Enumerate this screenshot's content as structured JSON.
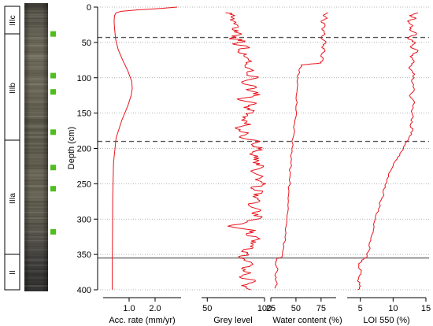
{
  "chart_data": {
    "type": "line",
    "y_axis": {
      "label": "Depth (cm)",
      "range": [
        0,
        400
      ],
      "inverted": true,
      "ticks": [
        "0",
        "50",
        "100",
        "150",
        "200",
        "250",
        "300",
        "350",
        "400"
      ],
      "gridlines": true,
      "grid_style": "dotted"
    },
    "units": {
      "labels": [
        "IIIc",
        "IIIb",
        "IIIa",
        "II"
      ],
      "boundaries_dashed": [
        43,
        190
      ],
      "boundary_solid": 355
    },
    "sample_markers": {
      "color": "#4fbe1e",
      "depths": [
        38,
        97,
        120,
        177,
        227,
        257,
        318
      ]
    },
    "series_color": "#e8141c",
    "panels": [
      {
        "id": "acc-rate",
        "xlabel": "Acc. rate (mm/yr)",
        "xlim": [
          0,
          3.0
        ],
        "ticks": [
          {
            "v": 1.0,
            "label": "1.0"
          },
          {
            "v": 2.0,
            "label": "2.0"
          }
        ],
        "depth": [
          0,
          2,
          4,
          6,
          8,
          12,
          20,
          30,
          45,
          60,
          75,
          90,
          105,
          115,
          125,
          140,
          160,
          185,
          220,
          270,
          320,
          370,
          400
        ],
        "value": [
          2.85,
          2.2,
          1.3,
          0.7,
          0.5,
          0.44,
          0.42,
          0.44,
          0.48,
          0.58,
          0.75,
          0.95,
          1.1,
          1.12,
          1.08,
          0.95,
          0.72,
          0.5,
          0.4,
          0.37,
          0.36,
          0.35,
          0.35
        ]
      },
      {
        "id": "grey-level",
        "xlabel": "Grey level",
        "xlim": [
          45,
          100
        ],
        "ticks": [
          {
            "v": 50,
            "label": "50"
          },
          {
            "v": 100,
            "label": "100"
          }
        ],
        "depth": [
          8,
          12,
          18,
          25,
          32,
          38,
          44,
          48,
          52,
          56,
          62,
          68,
          75,
          82,
          88,
          95,
          100,
          106,
          112,
          118,
          124,
          130,
          136,
          142,
          148,
          154,
          160,
          166,
          172,
          178,
          184,
          190,
          196,
          202,
          208,
          214,
          220,
          226,
          232,
          238,
          244,
          250,
          256,
          262,
          268,
          274,
          280,
          286,
          292,
          298,
          304,
          310,
          316,
          322,
          328,
          334,
          340,
          346,
          350,
          354,
          358,
          364,
          370,
          376,
          382,
          388,
          394,
          400
        ],
        "value": [
          66,
          74,
          70,
          76,
          72,
          80,
          70,
          83,
          72,
          85,
          78,
          82,
          86,
          83,
          88,
          85,
          94,
          80,
          92,
          86,
          96,
          76,
          93,
          82,
          90,
          85,
          80,
          88,
          75,
          86,
          78,
          96,
          90,
          98,
          87,
          95,
          90,
          99,
          88,
          96,
          92,
          101,
          88,
          98,
          90,
          96,
          86,
          95,
          89,
          97,
          85,
          68,
          92,
          84,
          96,
          88,
          90,
          80,
          86,
          78,
          82,
          90,
          80,
          88,
          78,
          92,
          80,
          88
        ]
      },
      {
        "id": "water-content",
        "xlabel": "Water content (%)",
        "xlim": [
          25,
          90
        ],
        "ticks": [
          {
            "v": 25,
            "label": "25"
          },
          {
            "v": 50,
            "label": "50"
          },
          {
            "v": 75,
            "label": "75"
          }
        ],
        "depth": [
          8,
          12,
          16,
          20,
          26,
          32,
          38,
          44,
          50,
          56,
          62,
          68,
          74,
          79,
          82,
          90,
          100,
          120,
          140,
          160,
          180,
          200,
          220,
          240,
          260,
          280,
          300,
          320,
          340,
          354,
          356,
          362,
          370,
          380,
          390,
          398
        ],
        "value": [
          82,
          77,
          81,
          75,
          79,
          76,
          79,
          75,
          80,
          76,
          79,
          75,
          77,
          75,
          55,
          53,
          52,
          51,
          50,
          49,
          48,
          46,
          45,
          44,
          43,
          42,
          41,
          40,
          38,
          36,
          31,
          30,
          32,
          29,
          31,
          29
        ]
      },
      {
        "id": "loi-550",
        "xlabel": "LOI 550 (%)",
        "xlim": [
          3,
          15
        ],
        "ticks": [
          {
            "v": 5,
            "label": "5"
          },
          {
            "v": 10,
            "label": "10"
          },
          {
            "v": 15,
            "label": "15"
          }
        ],
        "depth": [
          8,
          12,
          16,
          20,
          26,
          32,
          38,
          44,
          50,
          56,
          62,
          70,
          78,
          86,
          95,
          105,
          115,
          125,
          135,
          145,
          155,
          165,
          175,
          185,
          195,
          205,
          215,
          225,
          240,
          255,
          270,
          285,
          300,
          315,
          330,
          345,
          354,
          358,
          365,
          375,
          385,
          395,
          400
        ],
        "value": [
          13.8,
          12.5,
          13.5,
          12.2,
          13,
          12.5,
          13.6,
          12.2,
          13.4,
          12.6,
          13.8,
          12.6,
          13.2,
          12.4,
          13.3,
          12.8,
          13.2,
          12.5,
          13.3,
          12.9,
          13.1,
          12.7,
          13.0,
          12.4,
          11.8,
          11.2,
          10.6,
          10.0,
          9.3,
          8.8,
          8.3,
          7.8,
          7.3,
          7.0,
          6.6,
          6.3,
          6.0,
          5.2,
          4.8,
          5.1,
          4.7,
          5.0,
          4.6
        ]
      }
    ]
  }
}
